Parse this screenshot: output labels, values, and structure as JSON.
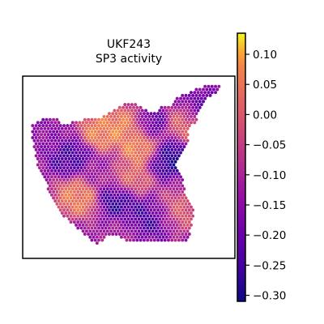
{
  "chart_data": {
    "type": "heatmap",
    "title_lines": [
      "UKF243",
      "SP3 activity"
    ],
    "colormap": "plasma",
    "colorbar": {
      "min": -0.31,
      "max": 0.135,
      "ticks": [
        0.1,
        0.05,
        0.0,
        -0.05,
        -0.1,
        -0.15,
        -0.2,
        -0.25,
        -0.3
      ],
      "tick_labels": [
        "0.10",
        "0.05",
        "0.00",
        "−0.05",
        "−0.10",
        "−0.15",
        "−0.20",
        "−0.25",
        "−0.30"
      ]
    },
    "legend": "right",
    "grid": false,
    "frame": true,
    "hotspots": [
      {
        "x": 0.52,
        "y": 0.26,
        "value": 0.12
      },
      {
        "x": 0.58,
        "y": 0.4,
        "value": 0.1
      },
      {
        "x": 0.36,
        "y": 0.3,
        "value": 0.08
      },
      {
        "x": 0.24,
        "y": 0.7,
        "value": 0.07
      },
      {
        "x": 0.5,
        "y": 0.6,
        "value": 0.04
      },
      {
        "x": 0.72,
        "y": 0.8,
        "value": 0.06
      },
      {
        "x": 0.8,
        "y": 0.25,
        "value": 0.02
      },
      {
        "x": 0.7,
        "y": 0.45,
        "value": -0.3
      },
      {
        "x": 0.66,
        "y": 0.82,
        "value": -0.3
      },
      {
        "x": 0.45,
        "y": 0.7,
        "value": -0.28
      },
      {
        "x": 0.2,
        "y": 0.45,
        "value": -0.25
      },
      {
        "x": 0.6,
        "y": 0.25,
        "value": -0.26
      },
      {
        "x": 0.1,
        "y": 0.3,
        "value": -0.15
      },
      {
        "x": 0.35,
        "y": 0.55,
        "value": -0.12
      },
      {
        "x": 0.88,
        "y": 0.15,
        "value": -0.2
      }
    ],
    "baseline_value": -0.12
  }
}
